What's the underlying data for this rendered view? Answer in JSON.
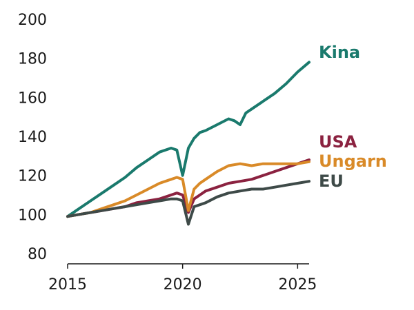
{
  "chart_data": {
    "type": "line",
    "title": "",
    "xlabel": "",
    "ylabel": "",
    "xlim": [
      2015,
      2025.5
    ],
    "ylim": [
      80,
      200
    ],
    "x_ticks": [
      2015,
      2020,
      2025
    ],
    "y_ticks": [
      80,
      100,
      120,
      140,
      160,
      180,
      200
    ],
    "grid": false,
    "legend": "direct labels at line ends (right)",
    "series": [
      {
        "name": "Kina",
        "color": "#1a7a6d",
        "x": [
          2015,
          2015.5,
          2016,
          2016.5,
          2017,
          2017.5,
          2018,
          2018.5,
          2019,
          2019.5,
          2019.75,
          2020,
          2020.25,
          2020.5,
          2020.75,
          2021,
          2021.5,
          2022,
          2022.25,
          2022.5,
          2022.75,
          2023,
          2023.5,
          2024,
          2024.5,
          2025,
          2025.5
        ],
        "y": [
          99,
          103,
          107,
          111,
          115,
          119,
          124,
          128,
          132,
          134,
          133,
          120,
          134,
          139,
          142,
          143,
          146,
          149,
          148,
          146,
          152,
          154,
          158,
          162,
          167,
          173,
          178
        ]
      },
      {
        "name": "USA",
        "color": "#8b2240",
        "x": [
          2015,
          2015.5,
          2016,
          2016.5,
          2017,
          2017.5,
          2018,
          2018.5,
          2019,
          2019.5,
          2019.75,
          2020,
          2020.25,
          2020.5,
          2020.75,
          2021,
          2021.5,
          2022,
          2022.5,
          2023,
          2023.5,
          2024,
          2024.5,
          2025,
          2025.5
        ],
        "y": [
          99,
          100,
          101,
          102,
          103,
          104,
          106,
          107,
          108,
          110,
          111,
          110,
          101,
          108,
          110,
          112,
          114,
          116,
          117,
          118,
          120,
          122,
          124,
          126,
          128
        ]
      },
      {
        "name": "Ungarn",
        "color": "#d98a28",
        "x": [
          2015,
          2015.5,
          2016,
          2016.5,
          2017,
          2017.5,
          2018,
          2018.5,
          2019,
          2019.5,
          2019.75,
          2020,
          2020.25,
          2020.5,
          2020.75,
          2021,
          2021.5,
          2022,
          2022.5,
          2023,
          2023.5,
          2024,
          2024.5,
          2025,
          2025.5
        ],
        "y": [
          99,
          100,
          101,
          103,
          105,
          107,
          110,
          113,
          116,
          118,
          119,
          118,
          102,
          113,
          116,
          118,
          122,
          125,
          126,
          125,
          126,
          126,
          126,
          126,
          127
        ]
      },
      {
        "name": "EU",
        "color": "#3e4a48",
        "x": [
          2015,
          2015.5,
          2016,
          2016.5,
          2017,
          2017.5,
          2018,
          2018.5,
          2019,
          2019.5,
          2019.75,
          2020,
          2020.25,
          2020.5,
          2020.75,
          2021,
          2021.5,
          2022,
          2022.5,
          2023,
          2023.5,
          2024,
          2024.5,
          2025,
          2025.5
        ],
        "y": [
          99,
          100,
          101,
          102,
          103,
          104,
          105,
          106,
          107,
          108,
          108,
          107,
          95,
          104,
          105,
          106,
          109,
          111,
          112,
          113,
          113,
          114,
          115,
          116,
          117
        ]
      }
    ]
  }
}
